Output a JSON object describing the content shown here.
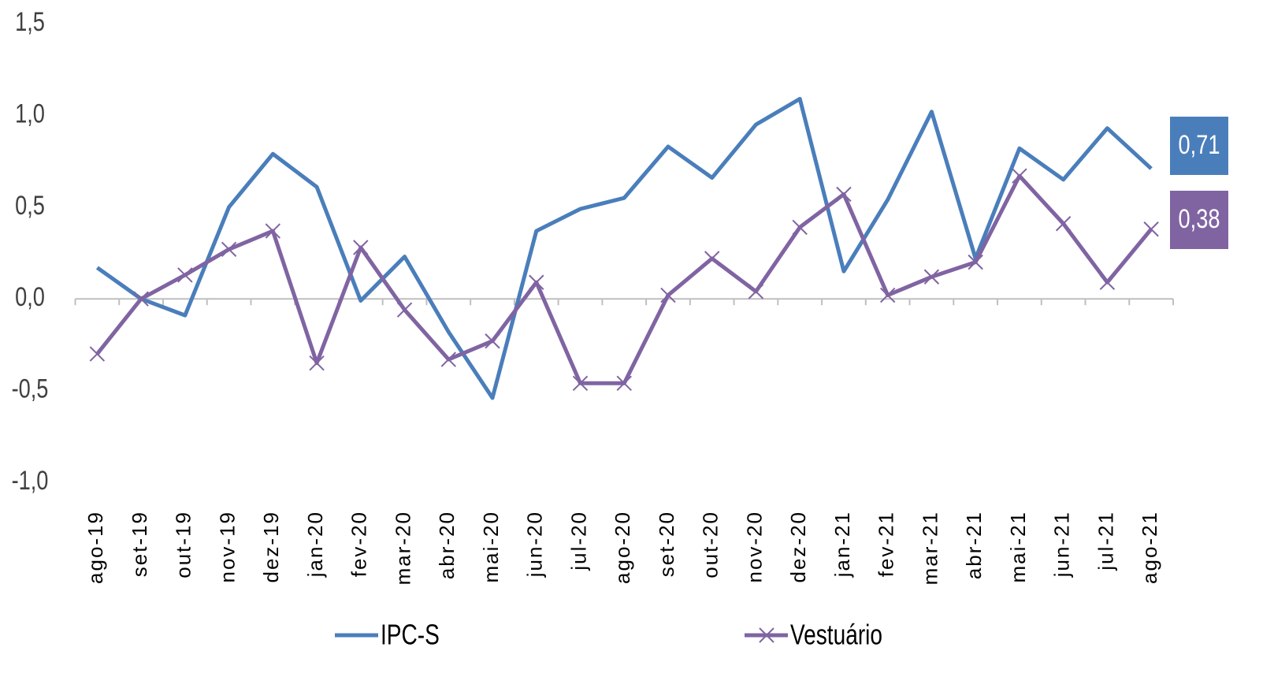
{
  "chart_data": {
    "type": "line",
    "categories": [
      "ago-19",
      "set-19",
      "out-19",
      "nov-19",
      "dez-19",
      "jan-20",
      "fev-20",
      "mar-20",
      "abr-20",
      "mai-20",
      "jun-20",
      "jul-20",
      "ago-20",
      "set-20",
      "out-20",
      "nov-20",
      "dez-20",
      "jan-21",
      "fev-21",
      "mar-21",
      "abr-21",
      "mai-21",
      "jun-21",
      "jul-21",
      "ago-21"
    ],
    "series": [
      {
        "name": "IPC-S",
        "color": "#4a7ebb",
        "marker": "none",
        "values": [
          0.17,
          0.0,
          -0.09,
          0.5,
          0.79,
          0.61,
          -0.01,
          0.23,
          -0.18,
          -0.54,
          0.37,
          0.49,
          0.55,
          0.83,
          0.66,
          0.95,
          1.09,
          0.15,
          0.54,
          1.02,
          0.22,
          0.82,
          0.65,
          0.93,
          0.71
        ],
        "value_labels": [
          null,
          null,
          null,
          null,
          null,
          null,
          null,
          null,
          null,
          null,
          null,
          null,
          null,
          null,
          null,
          null,
          null,
          null,
          null,
          null,
          null,
          null,
          null,
          null,
          "0,71"
        ]
      },
      {
        "name": "Vestuário",
        "color": "#8064a2",
        "marker": "x",
        "values": [
          -0.3,
          0.0,
          0.13,
          0.27,
          0.37,
          -0.35,
          0.28,
          -0.06,
          -0.33,
          -0.23,
          0.09,
          -0.46,
          -0.46,
          0.02,
          0.22,
          0.04,
          0.39,
          0.57,
          0.02,
          0.12,
          0.2,
          0.67,
          0.41,
          0.09,
          0.38
        ],
        "value_labels": [
          null,
          null,
          null,
          null,
          null,
          null,
          null,
          null,
          null,
          null,
          null,
          null,
          null,
          null,
          null,
          null,
          null,
          null,
          null,
          null,
          null,
          null,
          null,
          null,
          "0,38"
        ]
      }
    ],
    "ylim": [
      -1.0,
      1.5
    ],
    "yticks": [
      {
        "value": -1.0,
        "label": "-1,0"
      },
      {
        "value": -0.5,
        "label": "-0,5"
      },
      {
        "value": 0.0,
        "label": "0,0"
      },
      {
        "value": 0.5,
        "label": "0,5"
      },
      {
        "value": 1.0,
        "label": "1,0"
      },
      {
        "value": 1.5,
        "label": "1,5"
      }
    ],
    "grid": false
  }
}
